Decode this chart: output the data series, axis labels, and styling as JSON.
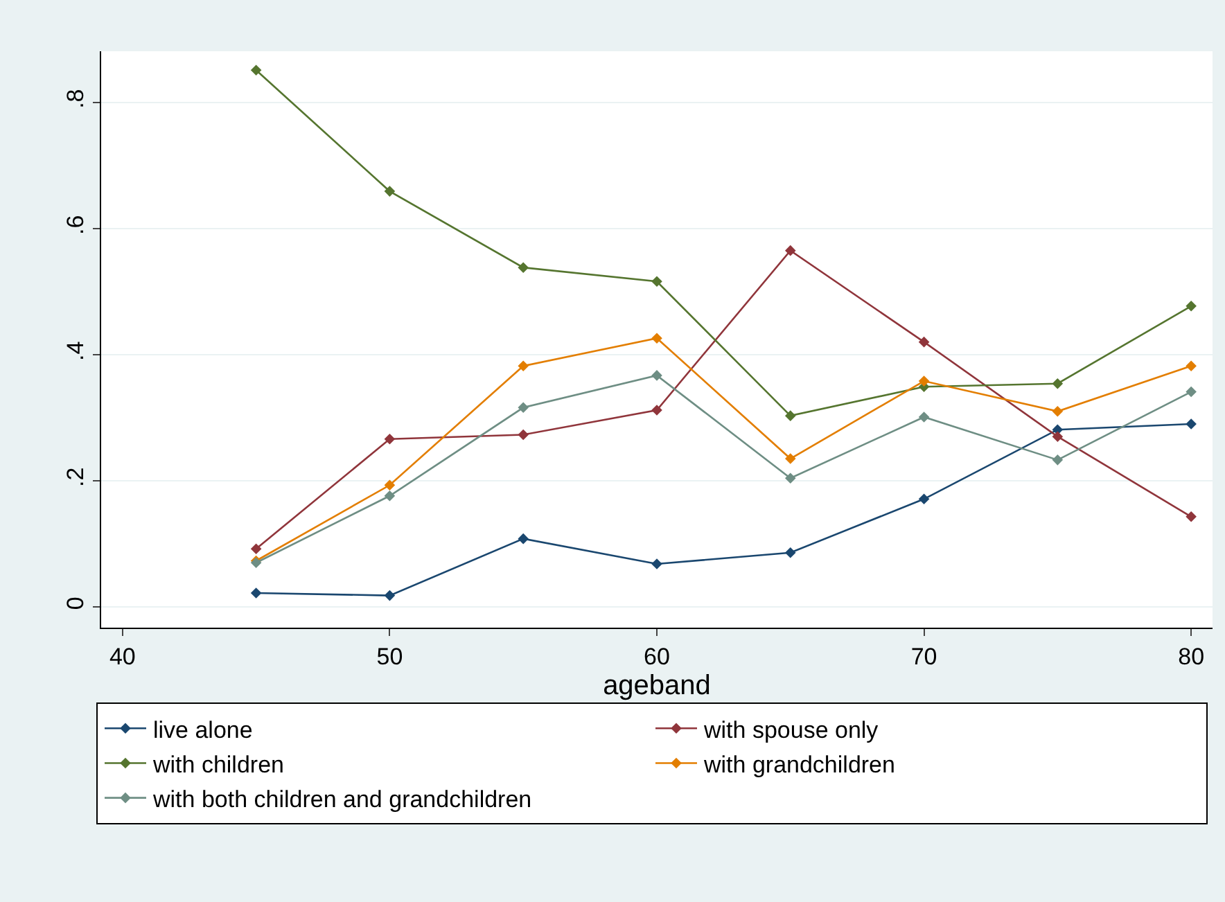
{
  "chart_data": {
    "type": "line",
    "xlabel": "ageband",
    "x": [
      45,
      50,
      55,
      60,
      65,
      70,
      75,
      80
    ],
    "xlim": [
      39.2,
      80.8
    ],
    "xticks": [
      40,
      50,
      60,
      70,
      80
    ],
    "ylim": [
      -0.033,
      0.881
    ],
    "yticks": [
      0,
      {
        "value": 0.2,
        "label": ".2"
      },
      {
        "value": 0.4,
        "label": ".4"
      },
      {
        "value": 0.6,
        "label": ".6"
      },
      {
        "value": 0.8,
        "label": ".8"
      }
    ],
    "grid": "y",
    "legend": "bottom",
    "marker": "diamond",
    "line_style": "solid",
    "series": [
      {
        "name": "live alone",
        "color": "#1a476f",
        "values": [
          0.022,
          0.018,
          0.108,
          0.068,
          0.086,
          0.171,
          0.281,
          0.29
        ]
      },
      {
        "name": "with spouse only",
        "color": "#90353b",
        "values": [
          0.092,
          0.266,
          0.273,
          0.312,
          0.565,
          0.42,
          0.27,
          0.143
        ]
      },
      {
        "name": "with children",
        "color": "#55752f",
        "values": [
          0.851,
          0.659,
          0.538,
          0.516,
          0.303,
          0.349,
          0.354,
          0.477
        ]
      },
      {
        "name": "with grandchildren",
        "color": "#e37e00",
        "values": [
          0.073,
          0.193,
          0.382,
          0.426,
          0.235,
          0.358,
          0.31,
          0.382
        ]
      },
      {
        "name": "with both children and grandchildren",
        "color": "#6e8e84",
        "values": [
          0.07,
          0.176,
          0.316,
          0.367,
          0.204,
          0.301,
          0.233,
          0.341
        ]
      }
    ]
  }
}
